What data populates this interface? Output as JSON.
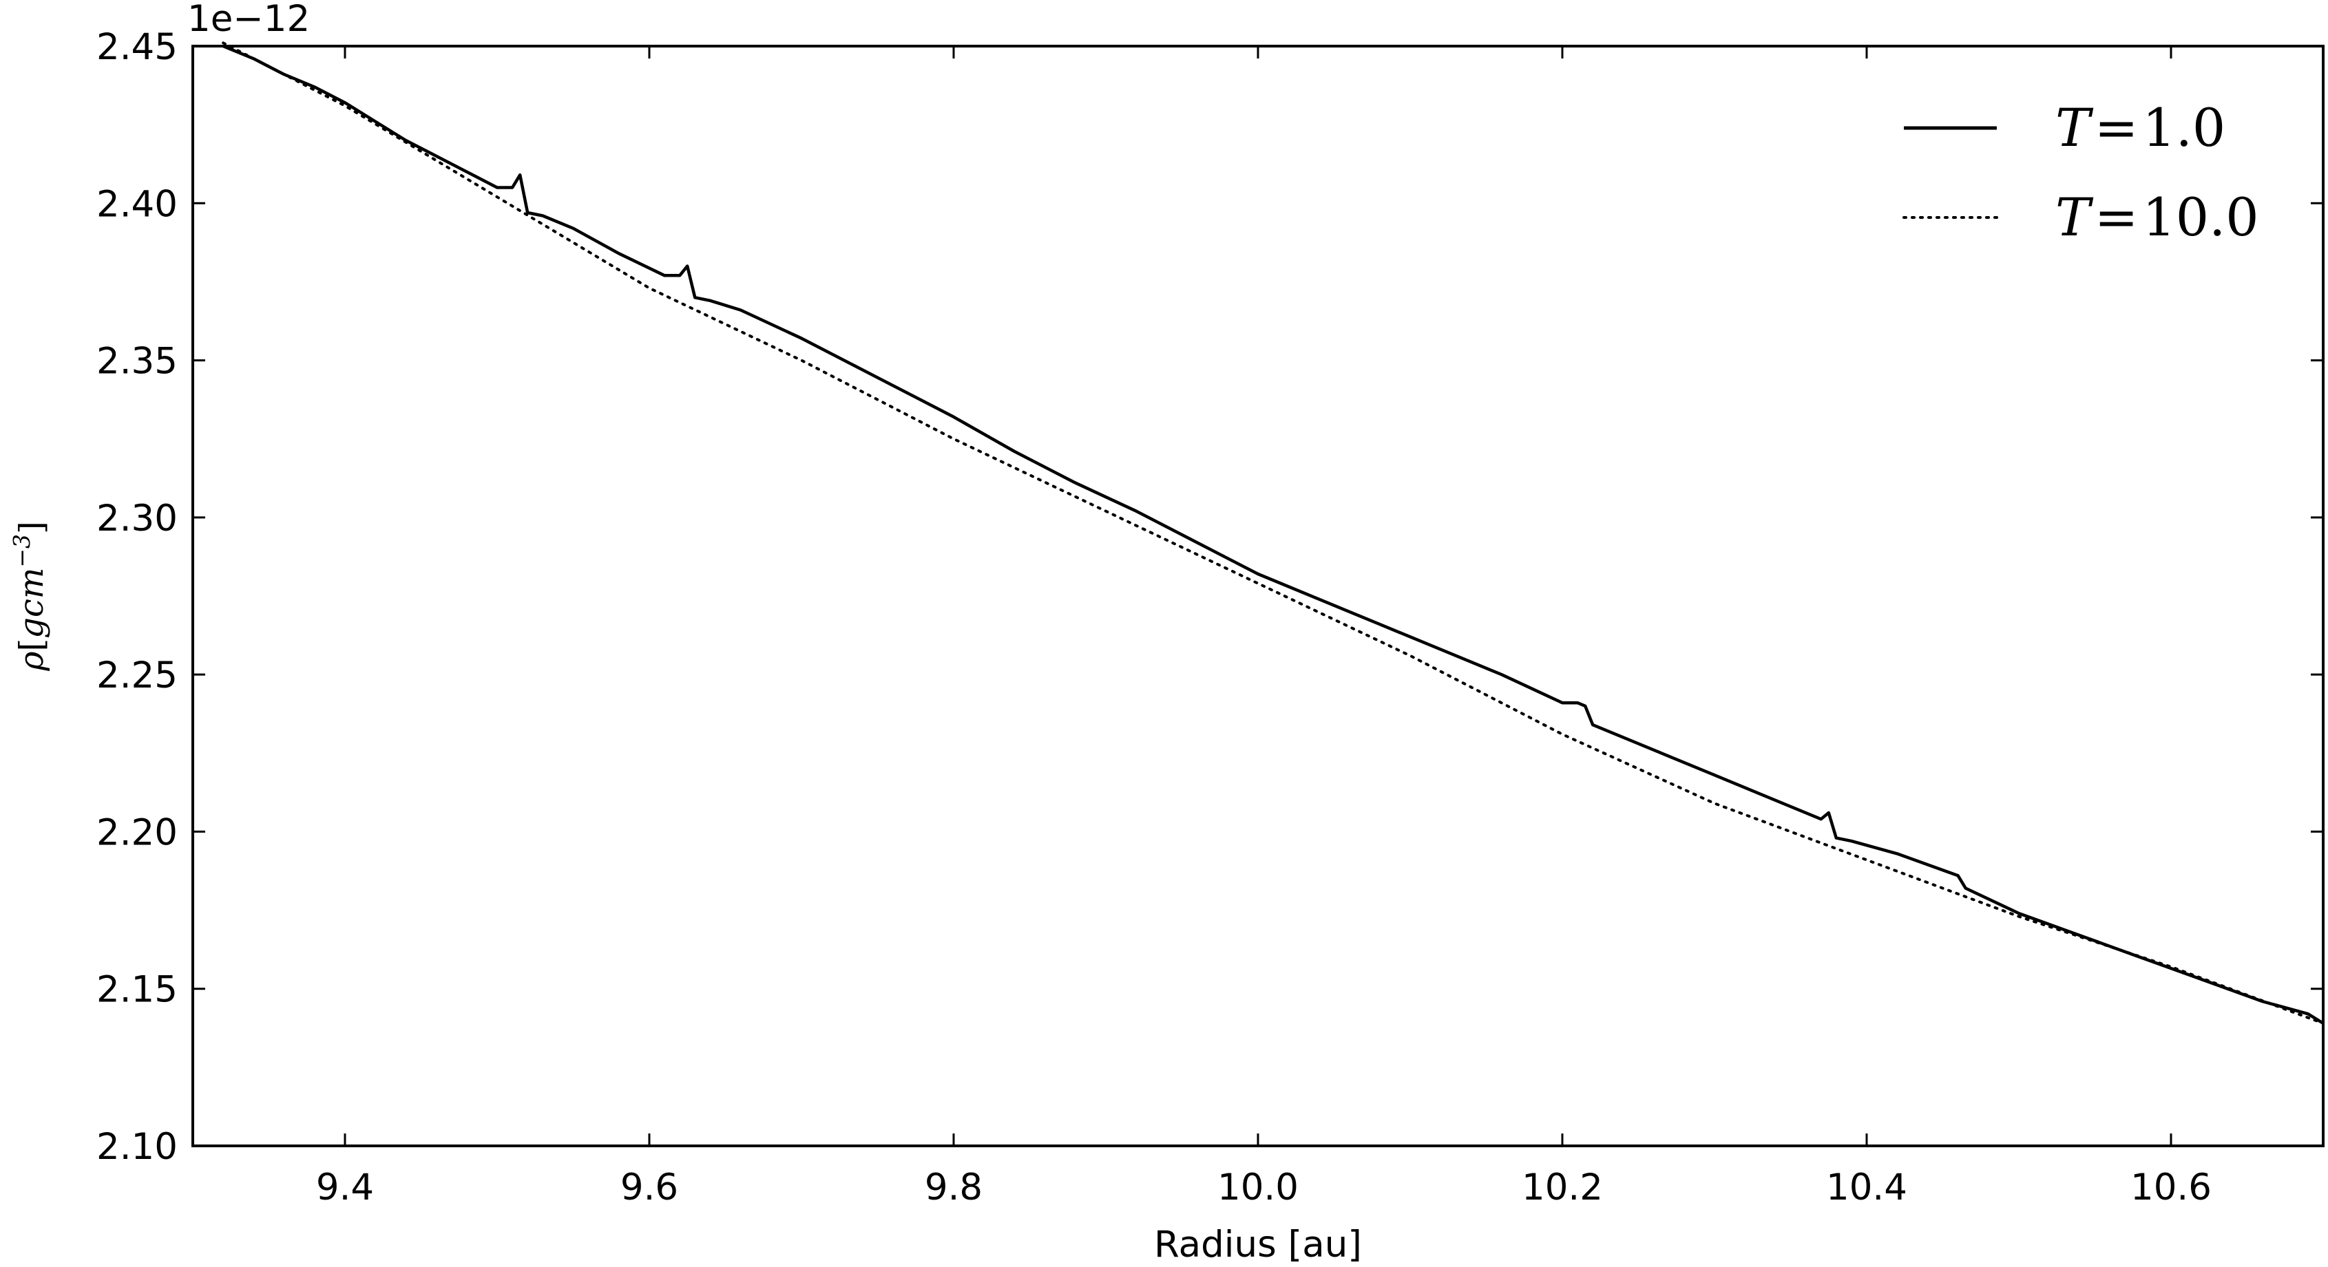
{
  "chart_data": {
    "type": "line",
    "xlabel": "Radius [au]",
    "ylabel": "ρ[gcm⁻³]",
    "ylabel_parts": {
      "rho": "ρ",
      "open": "[",
      "unit": "gcm",
      "exp": "−3",
      "close": "]"
    },
    "y_offset_label": "1e−12",
    "xlim": [
      9.3,
      10.7
    ],
    "ylim": [
      2.1,
      2.45
    ],
    "x_ticks": [
      9.4,
      9.6,
      9.8,
      10.0,
      10.2,
      10.4,
      10.6
    ],
    "x_tick_labels": [
      "9.4",
      "9.6",
      "9.8",
      "10.0",
      "10.2",
      "10.4",
      "10.6"
    ],
    "y_ticks": [
      2.1,
      2.15,
      2.2,
      2.25,
      2.3,
      2.35,
      2.4,
      2.45
    ],
    "y_tick_labels": [
      "2.10",
      "2.15",
      "2.20",
      "2.25",
      "2.30",
      "2.35",
      "2.40",
      "2.45"
    ],
    "grid": false,
    "legend_position": "top-right",
    "series": [
      {
        "name": "T = 1.0",
        "legend_parts": {
          "var": "T",
          "eq": "=",
          "val": "1.0"
        },
        "style": "solid",
        "color": "#000000",
        "x": [
          9.32,
          9.34,
          9.36,
          9.38,
          9.4,
          9.42,
          9.44,
          9.46,
          9.48,
          9.5,
          9.51,
          9.515,
          9.52,
          9.53,
          9.55,
          9.58,
          9.61,
          9.62,
          9.625,
          9.63,
          9.64,
          9.66,
          9.7,
          9.74,
          9.78,
          9.8,
          9.84,
          9.88,
          9.92,
          9.96,
          10.0,
          10.04,
          10.08,
          10.12,
          10.16,
          10.2,
          10.21,
          10.215,
          10.22,
          10.26,
          10.3,
          10.34,
          10.37,
          10.375,
          10.38,
          10.39,
          10.42,
          10.46,
          10.465,
          10.5,
          10.54,
          10.58,
          10.62,
          10.66,
          10.69,
          10.7
        ],
        "y": [
          2.45,
          2.446,
          2.441,
          2.437,
          2.432,
          2.426,
          2.42,
          2.415,
          2.41,
          2.405,
          2.405,
          2.409,
          2.397,
          2.396,
          2.392,
          2.384,
          2.377,
          2.377,
          2.38,
          2.37,
          2.369,
          2.366,
          2.357,
          2.347,
          2.337,
          2.332,
          2.321,
          2.311,
          2.302,
          2.292,
          2.282,
          2.274,
          2.266,
          2.258,
          2.25,
          2.241,
          2.241,
          2.24,
          2.234,
          2.226,
          2.218,
          2.21,
          2.204,
          2.206,
          2.198,
          2.197,
          2.193,
          2.186,
          2.182,
          2.174,
          2.167,
          2.16,
          2.153,
          2.146,
          2.142,
          2.139
        ]
      },
      {
        "name": "T = 10.0",
        "legend_parts": {
          "var": "T",
          "eq": "=",
          "val": "10.0"
        },
        "style": "dotted",
        "color": "#000000",
        "x": [
          9.32,
          9.4,
          9.5,
          9.6,
          9.7,
          9.8,
          9.9,
          10.0,
          10.1,
          10.2,
          10.3,
          10.4,
          10.5,
          10.6,
          10.7
        ],
        "y": [
          2.451,
          2.431,
          2.402,
          2.373,
          2.35,
          2.325,
          2.302,
          2.279,
          2.256,
          2.231,
          2.209,
          2.191,
          2.173,
          2.157,
          2.139
        ]
      }
    ]
  }
}
